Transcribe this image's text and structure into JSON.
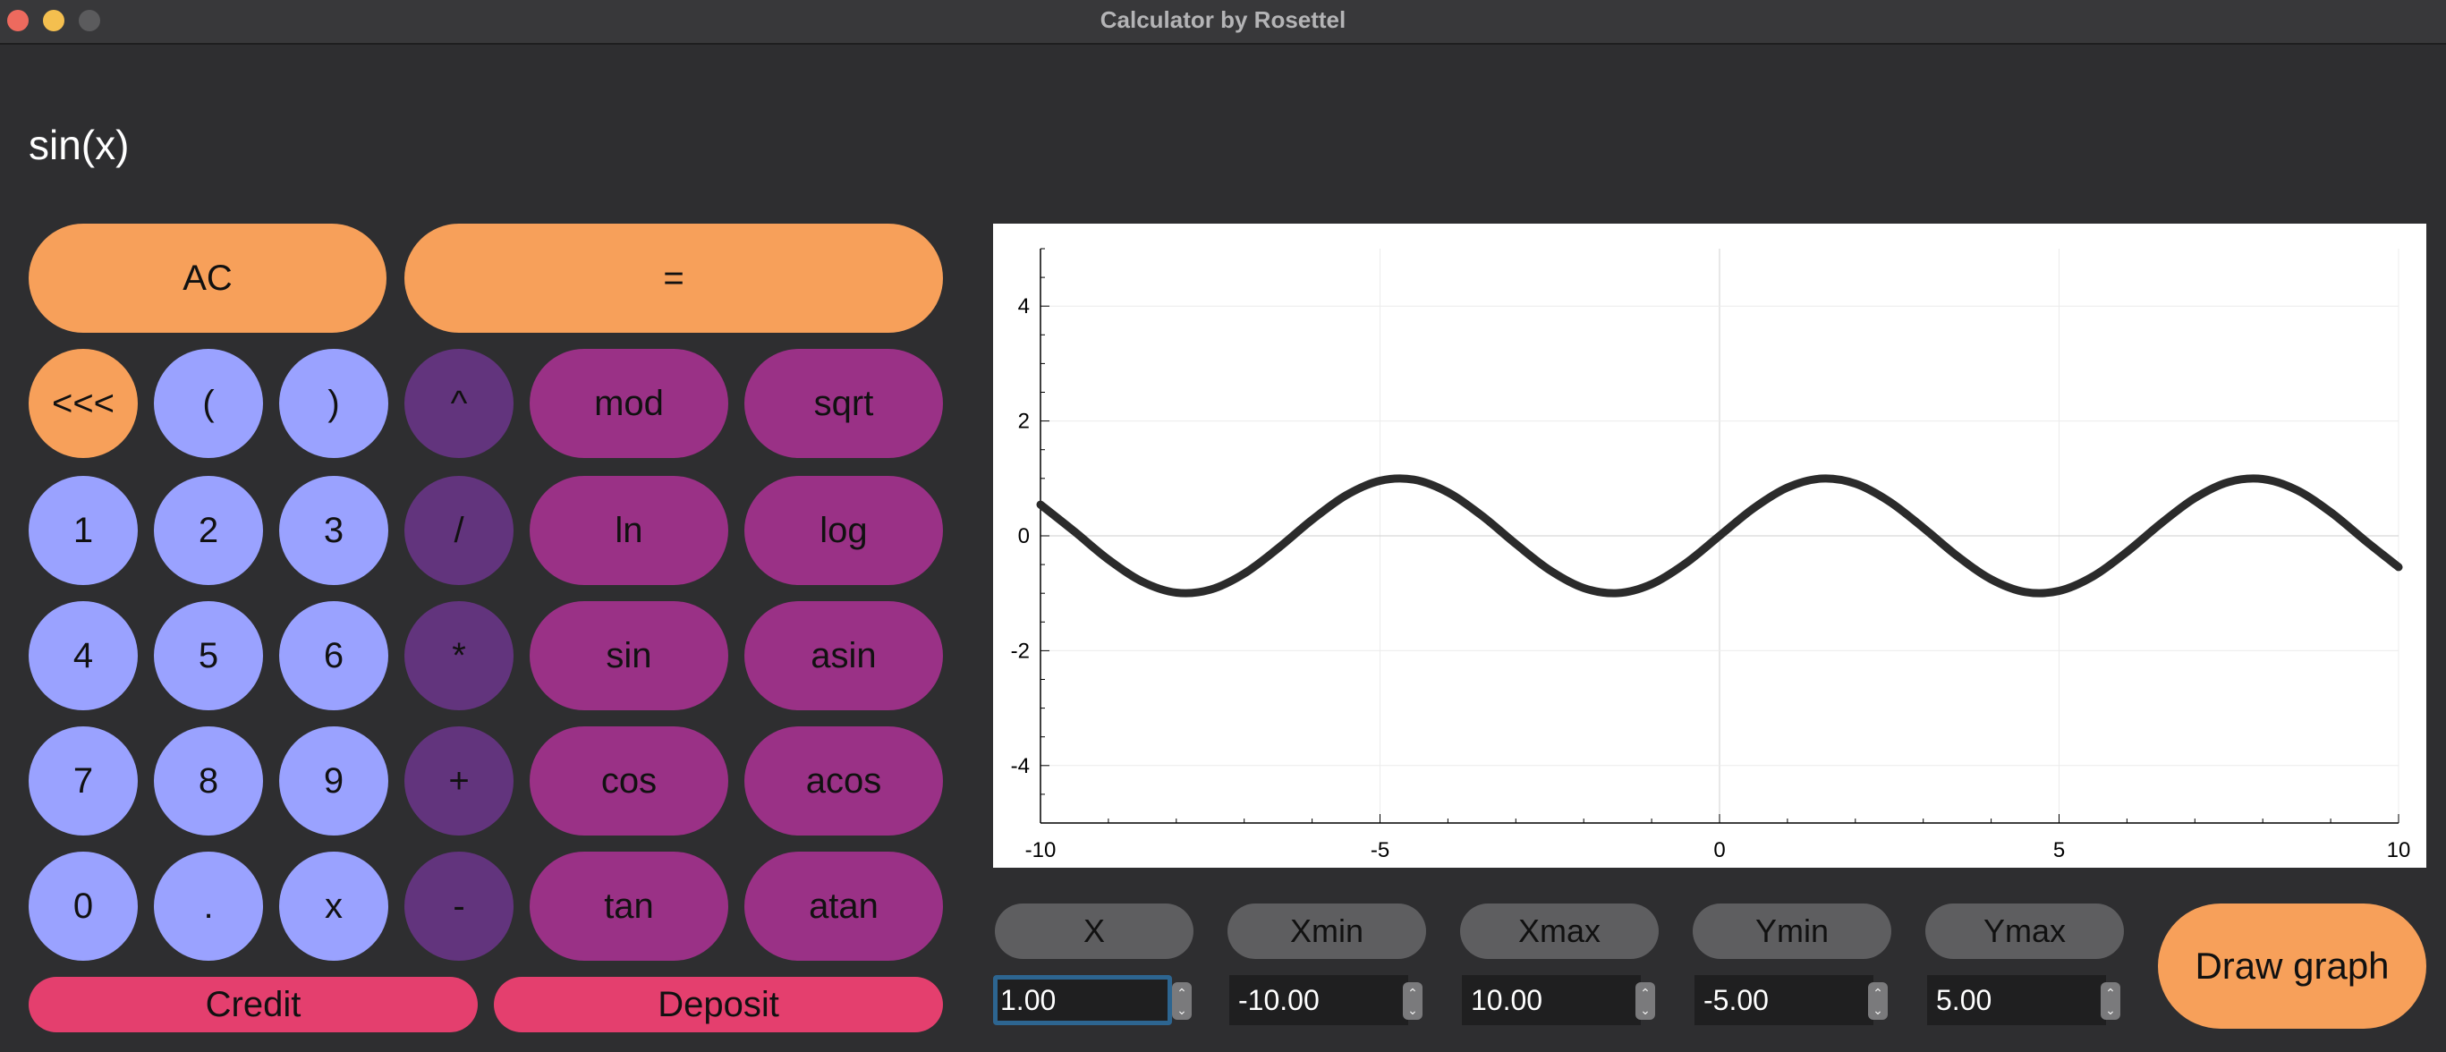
{
  "window": {
    "title": "Calculator by Rosettel"
  },
  "display": {
    "expression": "sin(x)"
  },
  "keys": {
    "ac": "AC",
    "equals": "=",
    "backspace": "<<<",
    "lparen": "(",
    "rparen": ")",
    "pow": "^",
    "mod": "mod",
    "sqrt": "sqrt",
    "d1": "1",
    "d2": "2",
    "d3": "3",
    "div": "/",
    "ln": "ln",
    "log": "log",
    "d4": "4",
    "d5": "5",
    "d6": "6",
    "mul": "*",
    "sin": "sin",
    "asin": "asin",
    "d7": "7",
    "d8": "8",
    "d9": "9",
    "plus": "+",
    "cos": "cos",
    "acos": "acos",
    "d0": "0",
    "dot": ".",
    "x": "x",
    "minus": "-",
    "tan": "tan",
    "atan": "atan",
    "credit": "Credit",
    "deposit": "Deposit"
  },
  "params": {
    "x": {
      "label": "X",
      "value": "1.00"
    },
    "xmin": {
      "label": "Xmin",
      "value": "-10.00"
    },
    "xmax": {
      "label": "Xmax",
      "value": "10.00"
    },
    "ymin": {
      "label": "Ymin",
      "value": "-5.00"
    },
    "ymax": {
      "label": "Ymax",
      "value": "5.00"
    }
  },
  "draw_button": "Draw graph",
  "colors": {
    "accent_orange": "#f7a05a",
    "digit_blue": "#9aa2ff",
    "operator_purple": "#62347d",
    "function_magenta": "#9a3186",
    "finance_pink": "#e43f6e",
    "background": "#2e2e30"
  },
  "chart_data": {
    "type": "line",
    "function": "sin(x)",
    "xlim": [
      -10,
      10
    ],
    "ylim": [
      -5,
      5
    ],
    "x_ticks": [
      -10,
      -5,
      0,
      5,
      10
    ],
    "y_ticks": [
      -4,
      -2,
      0,
      2,
      4
    ],
    "grid": true,
    "series": [
      {
        "x": [
          -10,
          -9.5,
          -9,
          -8.5,
          -8,
          -7.5,
          -7,
          -6.5,
          -6,
          -5.5,
          -5,
          -4.5,
          -4,
          -3.5,
          -3,
          -2.5,
          -2,
          -1.5,
          -1,
          -0.5,
          0,
          0.5,
          1,
          1.5,
          2,
          2.5,
          3,
          3.5,
          4,
          4.5,
          5,
          5.5,
          6,
          6.5,
          7,
          7.5,
          8,
          8.5,
          9,
          9.5,
          10
        ],
        "y": [
          0.544,
          0.075,
          -0.412,
          -0.798,
          -0.989,
          -0.938,
          -0.657,
          -0.215,
          0.279,
          0.706,
          0.959,
          0.978,
          0.757,
          0.351,
          -0.141,
          -0.598,
          -0.909,
          -0.997,
          -0.841,
          -0.479,
          0,
          0.479,
          0.841,
          0.997,
          0.909,
          0.598,
          0.141,
          -0.351,
          -0.757,
          -0.978,
          -0.959,
          -0.706,
          -0.279,
          0.215,
          0.657,
          0.938,
          0.989,
          0.798,
          0.412,
          -0.075,
          -0.544
        ]
      }
    ]
  }
}
